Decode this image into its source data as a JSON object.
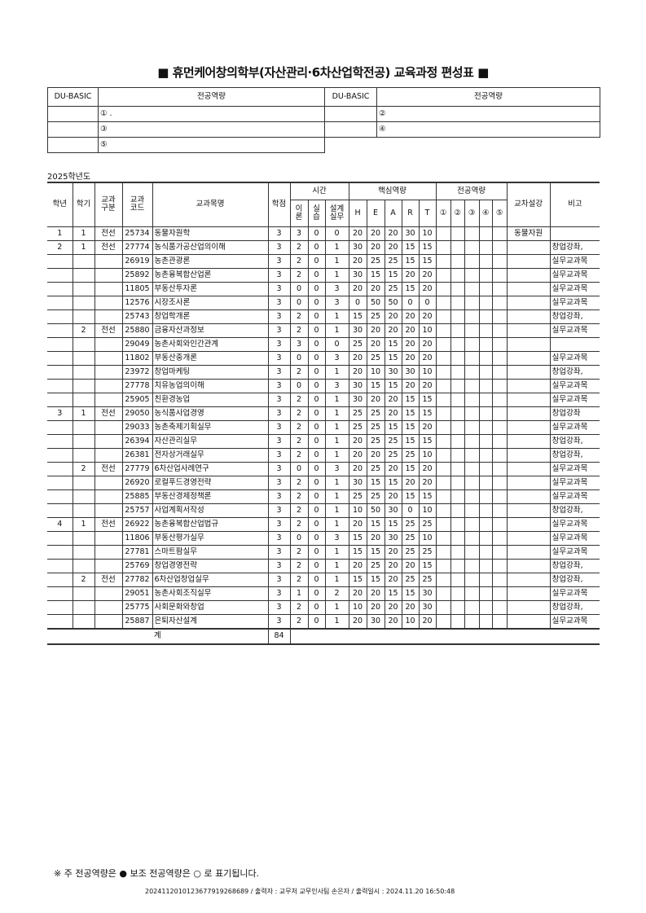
{
  "title": "■ 휴먼케어창의학부(자산관리·6차산업학전공) 교육과정 편성표 ■",
  "competency_table": {
    "headers": [
      "DU-BASIC",
      "전공역량",
      "DU-BASIC",
      "전공역량"
    ],
    "items": [
      "① .",
      "②",
      "③",
      "④",
      "⑤"
    ]
  },
  "year_label": "2025학년도",
  "headers": {
    "grade": "학년",
    "semester": "학기",
    "category": "교과\n구분",
    "code": "교과\n코드",
    "name": "교과목명",
    "credit": "학점",
    "time": "시간",
    "core": "핵심역량",
    "major": "전공역량",
    "cross": "교차설강",
    "note": "비고",
    "time_sub": [
      "이\n론",
      "실\n습",
      "설계\n실무"
    ],
    "core_sub": [
      "H",
      "E",
      "A",
      "R",
      "T"
    ],
    "major_sub": [
      "①",
      "②",
      "③",
      "④",
      "⑤"
    ]
  },
  "rows": [
    [
      "1",
      "1",
      "전선",
      "25734",
      "동물자원학",
      "3",
      "3",
      "0",
      "0",
      "20",
      "20",
      "20",
      "30",
      "10",
      "동물자원",
      ""
    ],
    [
      "2",
      "1",
      "전선",
      "27774",
      "농식품가공산업의이해",
      "3",
      "2",
      "0",
      "1",
      "30",
      "20",
      "20",
      "15",
      "15",
      "",
      "창업강좌,"
    ],
    [
      "",
      "",
      "",
      "26919",
      "농촌관광론",
      "3",
      "2",
      "0",
      "1",
      "20",
      "25",
      "25",
      "15",
      "15",
      "",
      "실무교과목"
    ],
    [
      "",
      "",
      "",
      "25892",
      "농촌융복합산업론",
      "3",
      "2",
      "0",
      "1",
      "30",
      "15",
      "15",
      "20",
      "20",
      "",
      "실무교과목"
    ],
    [
      "",
      "",
      "",
      "11805",
      "부동산투자론",
      "3",
      "0",
      "0",
      "3",
      "20",
      "20",
      "25",
      "15",
      "20",
      "",
      "실무교과목"
    ],
    [
      "",
      "",
      "",
      "12576",
      "시장조사론",
      "3",
      "0",
      "0",
      "3",
      "0",
      "50",
      "50",
      "0",
      "0",
      "",
      "실무교과목"
    ],
    [
      "",
      "",
      "",
      "25743",
      "창업학개론",
      "3",
      "2",
      "0",
      "1",
      "15",
      "25",
      "20",
      "20",
      "20",
      "",
      "창업강좌,"
    ],
    [
      "",
      "2",
      "전선",
      "25880",
      "금융자산과정보",
      "3",
      "2",
      "0",
      "1",
      "30",
      "20",
      "20",
      "20",
      "10",
      "",
      "실무교과목"
    ],
    [
      "",
      "",
      "",
      "29049",
      "농촌사회와인간관계",
      "3",
      "3",
      "0",
      "0",
      "25",
      "20",
      "15",
      "20",
      "20",
      "",
      ""
    ],
    [
      "",
      "",
      "",
      "11802",
      "부동산중개론",
      "3",
      "0",
      "0",
      "3",
      "20",
      "25",
      "15",
      "20",
      "20",
      "",
      "실무교과목"
    ],
    [
      "",
      "",
      "",
      "23972",
      "창업마케팅",
      "3",
      "2",
      "0",
      "1",
      "20",
      "10",
      "30",
      "30",
      "10",
      "",
      "창업강좌,"
    ],
    [
      "",
      "",
      "",
      "27778",
      "치유농업의이해",
      "3",
      "0",
      "0",
      "3",
      "30",
      "15",
      "15",
      "20",
      "20",
      "",
      "실무교과목"
    ],
    [
      "",
      "",
      "",
      "25905",
      "친환경농업",
      "3",
      "2",
      "0",
      "1",
      "30",
      "20",
      "20",
      "15",
      "15",
      "",
      "실무교과목"
    ],
    [
      "3",
      "1",
      "전선",
      "29050",
      "농식품사업경영",
      "3",
      "2",
      "0",
      "1",
      "25",
      "25",
      "20",
      "15",
      "15",
      "",
      "창업강좌"
    ],
    [
      "",
      "",
      "",
      "29033",
      "농촌축제기획실무",
      "3",
      "2",
      "0",
      "1",
      "25",
      "25",
      "15",
      "15",
      "20",
      "",
      "실무교과목"
    ],
    [
      "",
      "",
      "",
      "26394",
      "자산관리실무",
      "3",
      "2",
      "0",
      "1",
      "20",
      "25",
      "25",
      "15",
      "15",
      "",
      "창업강좌,"
    ],
    [
      "",
      "",
      "",
      "26381",
      "전자상거래실무",
      "3",
      "2",
      "0",
      "1",
      "20",
      "20",
      "25",
      "25",
      "10",
      "",
      "창업강좌,"
    ],
    [
      "",
      "2",
      "전선",
      "27779",
      "6차산업사례연구",
      "3",
      "0",
      "0",
      "3",
      "20",
      "25",
      "20",
      "15",
      "20",
      "",
      "실무교과목"
    ],
    [
      "",
      "",
      "",
      "26920",
      "로컬푸드경영전략",
      "3",
      "2",
      "0",
      "1",
      "30",
      "15",
      "15",
      "20",
      "20",
      "",
      "실무교과목"
    ],
    [
      "",
      "",
      "",
      "25885",
      "부동산경제정책론",
      "3",
      "2",
      "0",
      "1",
      "25",
      "25",
      "20",
      "15",
      "15",
      "",
      "실무교과목"
    ],
    [
      "",
      "",
      "",
      "25757",
      "사업계획서작성",
      "3",
      "2",
      "0",
      "1",
      "10",
      "50",
      "30",
      "0",
      "10",
      "",
      "창업강좌,"
    ],
    [
      "4",
      "1",
      "전선",
      "26922",
      "농촌융복합산업법규",
      "3",
      "2",
      "0",
      "1",
      "20",
      "15",
      "15",
      "25",
      "25",
      "",
      "실무교과목"
    ],
    [
      "",
      "",
      "",
      "11806",
      "부동산평가실무",
      "3",
      "0",
      "0",
      "3",
      "15",
      "20",
      "30",
      "25",
      "10",
      "",
      "실무교과목"
    ],
    [
      "",
      "",
      "",
      "27781",
      "스마트팜실무",
      "3",
      "2",
      "0",
      "1",
      "15",
      "15",
      "20",
      "25",
      "25",
      "",
      "실무교과목"
    ],
    [
      "",
      "",
      "",
      "25769",
      "창업경영전략",
      "3",
      "2",
      "0",
      "1",
      "20",
      "25",
      "20",
      "20",
      "15",
      "",
      "창업강좌,"
    ],
    [
      "",
      "2",
      "전선",
      "27782",
      "6차산업창업실무",
      "3",
      "2",
      "0",
      "1",
      "15",
      "15",
      "20",
      "25",
      "25",
      "",
      "창업강좌,"
    ],
    [
      "",
      "",
      "",
      "29051",
      "농촌사회조직실무",
      "3",
      "1",
      "0",
      "2",
      "20",
      "20",
      "15",
      "15",
      "30",
      "",
      "실무교과목"
    ],
    [
      "",
      "",
      "",
      "25775",
      "사회문화와창업",
      "3",
      "2",
      "0",
      "1",
      "10",
      "20",
      "20",
      "20",
      "30",
      "",
      "창업강좌,"
    ],
    [
      "",
      "",
      "",
      "25887",
      "은퇴자산설계",
      "3",
      "2",
      "0",
      "1",
      "20",
      "30",
      "20",
      "10",
      "20",
      "",
      "실무교과목"
    ]
  ],
  "total": {
    "label": "계",
    "credits": "84"
  },
  "legend": "※ 주 전공역량은 ● 보조 전공역량은 ○ 로 표기됩니다.",
  "footer": "20241120101236779192686​89 / 출력자 : 교무처 교무인사팀 손은자 / 출력일시 : 2024.11.20 16:50:48"
}
